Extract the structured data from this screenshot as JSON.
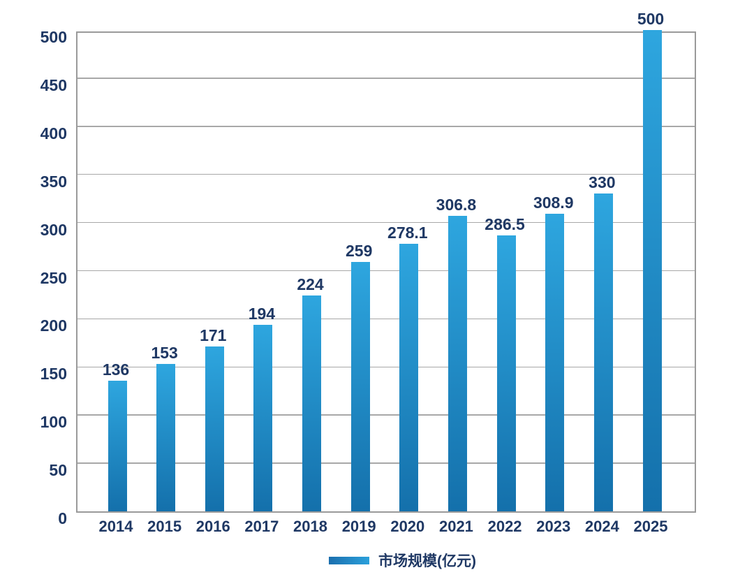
{
  "chart_data": {
    "type": "bar",
    "title": "",
    "categories": [
      "2014",
      "2015",
      "2016",
      "2017",
      "2018",
      "2019",
      "2020",
      "2021",
      "2022",
      "2023",
      "2024",
      "2025"
    ],
    "values": [
      136,
      153,
      171,
      194,
      224,
      259,
      278.1,
      306.8,
      286.5,
      308.9,
      330,
      500
    ],
    "data_labels": [
      "136",
      "153",
      "171",
      "194",
      "224",
      "259",
      "278.1",
      "306.8",
      "286.5",
      "308.9",
      "330",
      "500"
    ],
    "series_name": "市场规模(亿元)",
    "xlabel": "",
    "ylabel": "",
    "ylim": [
      0,
      500
    ],
    "yticks": [
      0,
      50,
      100,
      150,
      200,
      250,
      300,
      350,
      400,
      450,
      500
    ],
    "grid": "horizontal-major",
    "legend_position": "bottom-center",
    "colors": {
      "bar_gradient_top": "#2EA6DF",
      "bar_gradient_bottom": "#1470AB",
      "legend_swatch_left": "#1B6FAE",
      "legend_swatch_right": "#2BA0DB",
      "label_text": "#1F3864",
      "gridline": "#A8A8A8",
      "plot_border": "#9A9A9A",
      "background": "#FFFFFF"
    }
  },
  "legend": {
    "label": "市场规模(亿元)"
  }
}
